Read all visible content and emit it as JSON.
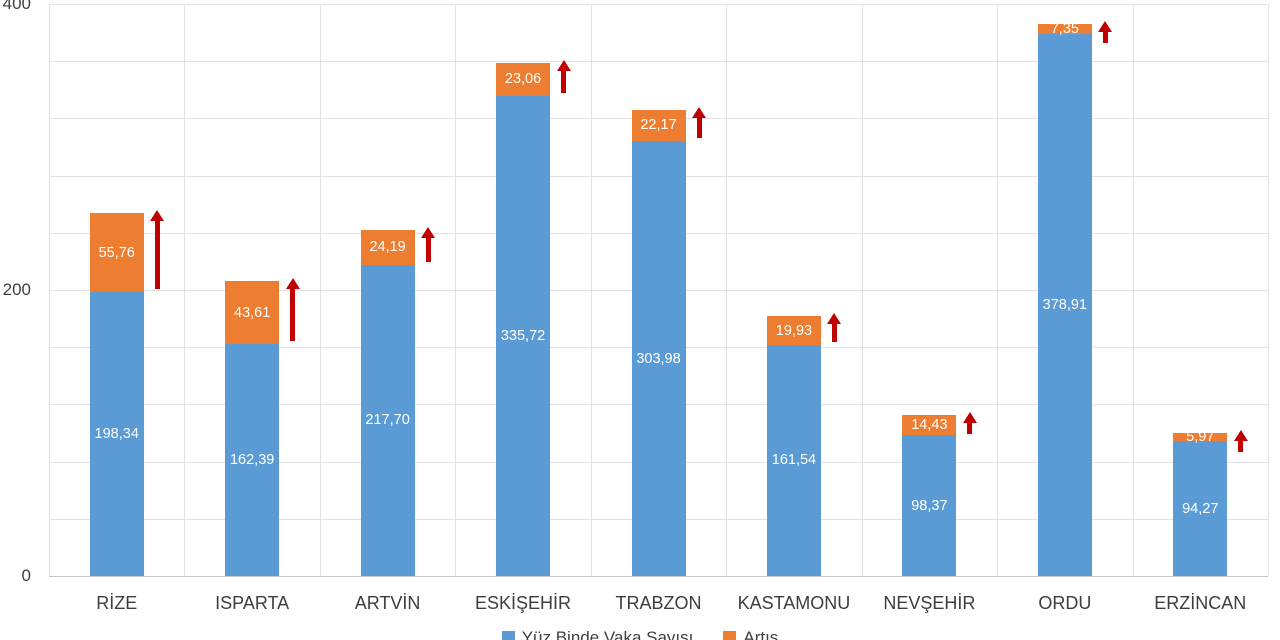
{
  "chart_data": {
    "type": "bar",
    "stacked": true,
    "orientation": "vertical",
    "title": "",
    "categories": [
      "RİZE",
      "ISPARTA",
      "ARTVİN",
      "ESKİŞEHİR",
      "TRABZON",
      "KASTAMONU",
      "NEVŞEHİR",
      "ORDU",
      "ERZİNCAN"
    ],
    "series": [
      {
        "name": "Yüz Binde Vaka Sayısı",
        "color": "#5B9BD5",
        "values": [
          198.34,
          162.39,
          217.7,
          335.72,
          303.98,
          161.54,
          98.37,
          378.91,
          94.27
        ],
        "labels": [
          "198,34",
          "162,39",
          "217,70",
          "335,72",
          "303,98",
          "161,54",
          "98,37",
          "378,91",
          "94,27"
        ]
      },
      {
        "name": "Artış",
        "color": "#ED7D31",
        "values": [
          55.76,
          43.61,
          24.19,
          23.06,
          22.17,
          19.93,
          14.43,
          7.35,
          5.97
        ],
        "labels": [
          "55,76",
          "43,61",
          "24,19",
          "23,06",
          "22,17",
          "19,93",
          "14,43",
          "7,35",
          "5,97"
        ]
      }
    ],
    "annotations": {
      "increase_arrow": {
        "shape": "up-arrow",
        "color": "#C00000",
        "per_category": true
      }
    },
    "y_axis": {
      "min": 0,
      "max": 400,
      "minor_unit": 40,
      "ticks": [
        {
          "value": 0,
          "label": "0"
        },
        {
          "value": 200,
          "label": "200"
        },
        {
          "value": 400,
          "label": "400"
        }
      ],
      "tick_color": "#404040"
    },
    "x_axis": {
      "label_color": "#3d3d3d"
    },
    "grid": {
      "show": true,
      "color": "#E2E2E2",
      "axis_line_color": "#C6C6C6"
    },
    "value_labels": {
      "color": "#FFFFFF",
      "decimal_separator": ","
    },
    "legend": {
      "position": "bottom",
      "clipped_at_bottom": true,
      "text_color": "#404040"
    }
  }
}
